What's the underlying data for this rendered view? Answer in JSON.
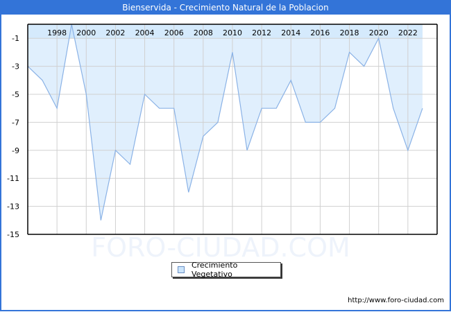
{
  "title": "Bienservida - Crecimiento Natural de la Poblacion",
  "watermark": "FORO-CIUDAD.COM",
  "source_url": "http://www.foro-ciudad.com",
  "legend": {
    "label": "Crecimiento Vegetativo",
    "swatch_color": "#cce5fb"
  },
  "colors": {
    "title_bar": "#3374d8",
    "area_fill": "#e0effd",
    "top_band": "#cce5fb",
    "line": "#8ab2e6",
    "grid": "#d0d0d0",
    "axis": "#000000"
  },
  "chart_data": {
    "type": "area",
    "title": "Bienservida - Crecimiento Natural de la Poblacion",
    "xlabel": "",
    "ylabel": "",
    "x": [
      1996,
      1997,
      1998,
      1999,
      2000,
      2001,
      2002,
      2003,
      2004,
      2005,
      2006,
      2007,
      2008,
      2009,
      2010,
      2011,
      2012,
      2013,
      2014,
      2015,
      2016,
      2017,
      2018,
      2019,
      2020,
      2021,
      2022,
      2023
    ],
    "series": [
      {
        "name": "Crecimiento Vegetativo",
        "values": [
          -3,
          -4,
          -6,
          0,
          -5,
          -14,
          -9,
          -10,
          -5,
          -6,
          -6,
          -12,
          -8,
          -7,
          -2,
          -9,
          -6,
          -6,
          -4,
          -7,
          -7,
          -6,
          -2,
          -3,
          -1,
          -6,
          -9,
          -6
        ]
      }
    ],
    "x_tick_labels": [
      "1998",
      "2000",
      "2002",
      "2004",
      "2006",
      "2008",
      "2010",
      "2012",
      "2014",
      "2016",
      "2018",
      "2020",
      "2022"
    ],
    "y_tick_labels": [
      "-1",
      "-3",
      "-5",
      "-7",
      "-9",
      "-11",
      "-13",
      "-15"
    ],
    "y_ticks": [
      -1,
      -3,
      -5,
      -7,
      -9,
      -11,
      -13,
      -15
    ],
    "ylim": [
      -15,
      0
    ],
    "xlim": [
      1996,
      2024
    ],
    "grid": true,
    "x_axis_position": "top",
    "legend_position": "bottom-center"
  }
}
